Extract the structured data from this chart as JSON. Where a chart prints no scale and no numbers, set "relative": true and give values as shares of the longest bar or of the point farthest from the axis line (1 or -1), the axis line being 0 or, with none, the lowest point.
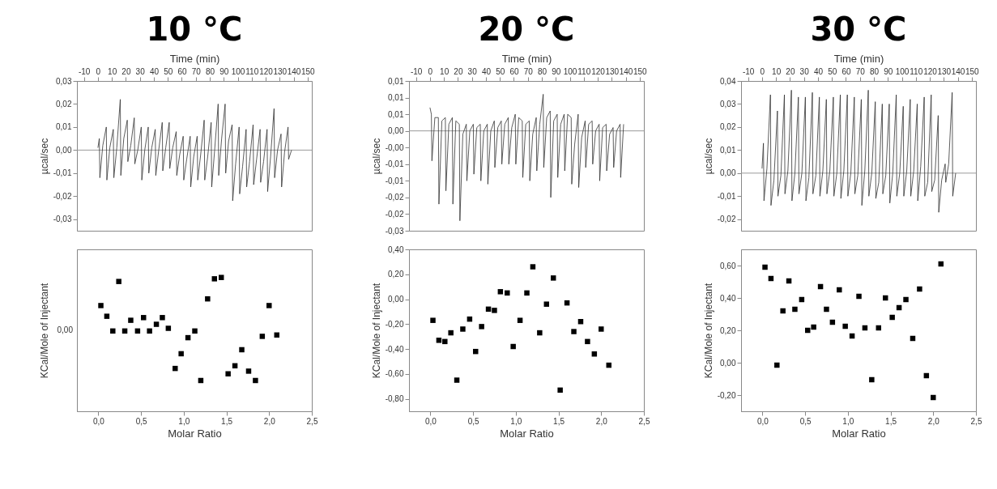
{
  "chart_data": [
    {
      "type": "line",
      "title": "10 °C",
      "xlabel": "Time (min)",
      "ylabel": "µcal/sec",
      "color": "#333333",
      "line_style": "solid",
      "grid": false,
      "xlim": [
        -15,
        153
      ],
      "xticks": [
        -10,
        0,
        10,
        20,
        30,
        40,
        50,
        60,
        70,
        80,
        90,
        100,
        110,
        120,
        130,
        140,
        150
      ],
      "ylim": [
        -0.035,
        0.03
      ],
      "yticks": [
        {
          "value": -0.03,
          "label": "-0,03"
        },
        {
          "value": -0.02,
          "label": "-0,02"
        },
        {
          "value": -0.01,
          "label": "-0,01"
        },
        {
          "value": 0,
          "label": "0,00"
        },
        {
          "value": 0.01,
          "label": "0,01"
        },
        {
          "value": 0.02,
          "label": "0,02"
        },
        {
          "value": 0.03,
          "label": "0,03"
        }
      ],
      "ref_lines": [
        {
          "axis": "y",
          "value": 0,
          "color": "#999999"
        }
      ],
      "x": [
        0,
        1,
        1.4,
        3.5,
        6,
        6.4,
        8.5,
        11,
        11.4,
        13.5,
        16,
        16.4,
        18.5,
        21,
        21.4,
        23.5,
        26,
        26.4,
        28.5,
        31,
        31.4,
        33.5,
        36,
        36.4,
        38.5,
        41,
        41.4,
        43.5,
        46,
        46.4,
        48.5,
        51,
        51.4,
        53.5,
        56,
        56.4,
        58.5,
        61,
        61.4,
        63.5,
        66,
        66.4,
        68.5,
        71,
        71.4,
        73.5,
        76,
        76.4,
        78.5,
        81,
        81.4,
        83.5,
        86,
        86.4,
        88.5,
        91,
        91.4,
        93.5,
        96,
        96.4,
        98.5,
        101,
        101.4,
        103.5,
        106,
        106.4,
        108.5,
        111,
        111.4,
        113.5,
        116,
        116.4,
        118.5,
        121,
        121.4,
        123.5,
        126,
        126.4,
        128.5,
        131,
        131.4,
        133.5,
        136,
        136.4,
        138.5
      ],
      "values": [
        0.001,
        0.005,
        -0.012,
        0.002,
        0.01,
        -0.013,
        0.001,
        0.009,
        -0.012,
        0.001,
        0.022,
        -0.011,
        0.005,
        0.013,
        -0.005,
        0.002,
        0.014,
        -0.006,
        0,
        0.01,
        -0.013,
        0,
        0.01,
        -0.01,
        0.001,
        0.009,
        -0.011,
        0,
        0.012,
        -0.009,
        0.001,
        0.012,
        -0.008,
        0.001,
        0.008,
        -0.011,
        -0.002,
        0.006,
        -0.013,
        -0.004,
        0.006,
        -0.016,
        -0.003,
        0.006,
        -0.013,
        -0.002,
        0.013,
        -0.013,
        -0.003,
        0.012,
        -0.016,
        0,
        0.02,
        -0.011,
        0.005,
        0.02,
        -0.01,
        0.004,
        0.011,
        -0.022,
        -0.006,
        0.01,
        -0.019,
        -0.007,
        0.009,
        -0.016,
        -0.005,
        0.011,
        -0.015,
        -0.004,
        0.009,
        -0.014,
        -0.005,
        0.009,
        -0.018,
        -0.003,
        0.018,
        -0.012,
        0,
        0.007,
        -0.016,
        -0.001,
        0.01,
        -0.004,
        0
      ]
    },
    {
      "type": "scatter",
      "xlabel": "Molar Ratio",
      "ylabel": "KCal/Mole of Injectant",
      "color": "#000000",
      "marker": "square",
      "grid": false,
      "relative": true,
      "xlim": [
        -0.25,
        2.5
      ],
      "xticks": [
        {
          "value": 0,
          "label": "0,0"
        },
        {
          "value": 0.5,
          "label": "0,5"
        },
        {
          "value": 1,
          "label": "1,0"
        },
        {
          "value": 1.5,
          "label": "1,5"
        },
        {
          "value": 2,
          "label": "2,0"
        },
        {
          "value": 2.5,
          "label": "2,5"
        }
      ],
      "annotations": [
        "0,00"
      ],
      "x": [
        0.03,
        0.1,
        0.17,
        0.24,
        0.31,
        0.38,
        0.46,
        0.53,
        0.6,
        0.68,
        0.75,
        0.82,
        0.9,
        0.97,
        1.05,
        1.13,
        1.2,
        1.28,
        1.36,
        1.44,
        1.52,
        1.6,
        1.68,
        1.76,
        1.84,
        1.92,
        2.0,
        2.09
      ],
      "values": [
        0.79,
        0.71,
        0.6,
        0.97,
        0.6,
        0.68,
        0.6,
        0.7,
        0.6,
        0.65,
        0.7,
        0.62,
        0.32,
        0.43,
        0.55,
        0.6,
        0.23,
        0.84,
        0.99,
        1,
        0.28,
        0.34,
        0.46,
        0.3,
        0.23,
        0.56,
        0.79,
        0.57
      ]
    },
    {
      "type": "line",
      "title": "20 °C",
      "xlabel": "Time (min)",
      "ylabel": "µcal/sec",
      "color": "#333333",
      "line_style": "solid",
      "grid": false,
      "xlim": [
        -15,
        153
      ],
      "xticks": [
        -10,
        0,
        10,
        20,
        30,
        40,
        50,
        60,
        70,
        80,
        90,
        100,
        110,
        120,
        130,
        140,
        150
      ],
      "ylim": [
        -0.03,
        0.015
      ],
      "yticks": [
        {
          "value": -0.03,
          "label": "-0,03"
        },
        {
          "value": -0.025,
          "label": "-0,02"
        },
        {
          "value": -0.02,
          "label": "-0,02"
        },
        {
          "value": -0.015,
          "label": "-0,01"
        },
        {
          "value": -0.01,
          "label": "-0,01"
        },
        {
          "value": -0.005,
          "label": "-0,00"
        },
        {
          "value": 0,
          "label": "0,00"
        },
        {
          "value": 0.005,
          "label": "0,01"
        },
        {
          "value": 0.01,
          "label": "0,01"
        },
        {
          "value": 0.015,
          "label": "0,01"
        }
      ],
      "ref_lines": [
        {
          "axis": "y",
          "value": 0,
          "color": "#999999"
        }
      ],
      "x": [
        0,
        1,
        1.4,
        3.5,
        6,
        6.4,
        8.5,
        11,
        11.4,
        13.5,
        16,
        16.4,
        18.5,
        21,
        21.4,
        23.5,
        26,
        26.4,
        28.5,
        31,
        31.4,
        33.5,
        36,
        36.4,
        38.5,
        41,
        41.4,
        43.5,
        46,
        46.4,
        48.5,
        51,
        51.4,
        53.5,
        56,
        56.4,
        58.5,
        61,
        61.4,
        63.5,
        66,
        66.4,
        68.5,
        71,
        71.4,
        73.5,
        76,
        76.4,
        78.5,
        81,
        81.4,
        83.5,
        86,
        86.4,
        88.5,
        91,
        91.4,
        93.5,
        96,
        96.4,
        98.5,
        101,
        101.4,
        103.5,
        106,
        106.4,
        108.5,
        111,
        111.4,
        113.5,
        116,
        116.4,
        118.5,
        121,
        121.4,
        123.5,
        126,
        126.4,
        128.5,
        131,
        131.4,
        133.5,
        136,
        136.4,
        138.5
      ],
      "values": [
        0.007,
        0.005,
        -0.009,
        0.004,
        0.004,
        -0.022,
        0.003,
        0.004,
        -0.018,
        0.002,
        0.004,
        -0.022,
        0.003,
        0.002,
        -0.027,
        -0.001,
        0.002,
        -0.015,
        0,
        0.002,
        -0.013,
        0.001,
        0.002,
        -0.015,
        0,
        0.002,
        -0.016,
        0,
        0.003,
        -0.011,
        0.001,
        0.003,
        -0.01,
        0.002,
        0.004,
        -0.01,
        0.001,
        0.005,
        -0.01,
        0.004,
        0.003,
        -0.014,
        0.002,
        0.003,
        -0.015,
        -0.001,
        0.004,
        -0.012,
        0.002,
        0.011,
        -0.011,
        0.004,
        0.006,
        -0.02,
        0.003,
        0.005,
        -0.014,
        0.002,
        0.005,
        -0.012,
        0.005,
        0.004,
        -0.016,
        -0.004,
        0.005,
        -0.017,
        -0.002,
        0.003,
        -0.011,
        0.002,
        0.003,
        -0.01,
        0,
        0.002,
        -0.015,
        0.001,
        0.002,
        -0.012,
        -0.001,
        0.001,
        -0.011,
        0,
        0.002,
        -0.014,
        0.002
      ]
    },
    {
      "type": "scatter",
      "xlabel": "Molar Ratio",
      "ylabel": "KCal/Mole of Injectant",
      "color": "#000000",
      "marker": "square",
      "grid": false,
      "xlim": [
        -0.25,
        2.5
      ],
      "xticks": [
        {
          "value": 0,
          "label": "0,0"
        },
        {
          "value": 0.5,
          "label": "0,5"
        },
        {
          "value": 1,
          "label": "1,0"
        },
        {
          "value": 1.5,
          "label": "1,5"
        },
        {
          "value": 2,
          "label": "2,0"
        },
        {
          "value": 2.5,
          "label": "2,5"
        }
      ],
      "ylim": [
        -0.9,
        0.4
      ],
      "yticks": [
        {
          "value": -0.8,
          "label": "-0,80"
        },
        {
          "value": -0.6,
          "label": "-0,60"
        },
        {
          "value": -0.4,
          "label": "-0,40"
        },
        {
          "value": -0.2,
          "label": "-0,20"
        },
        {
          "value": 0,
          "label": "0,00"
        },
        {
          "value": 0.2,
          "label": "0,20"
        },
        {
          "value": 0.4,
          "label": "0,40"
        }
      ],
      "x": [
        0.03,
        0.1,
        0.17,
        0.24,
        0.31,
        0.38,
        0.46,
        0.53,
        0.6,
        0.68,
        0.75,
        0.82,
        0.9,
        0.97,
        1.05,
        1.13,
        1.2,
        1.28,
        1.36,
        1.44,
        1.52,
        1.6,
        1.68,
        1.76,
        1.84,
        1.92,
        2.0,
        2.09
      ],
      "values": [
        -0.17,
        -0.33,
        -0.34,
        -0.27,
        -0.65,
        -0.24,
        -0.16,
        -0.42,
        -0.22,
        -0.08,
        -0.09,
        0.06,
        0.05,
        -0.38,
        -0.17,
        0.05,
        0.26,
        -0.27,
        -0.04,
        0.17,
        -0.73,
        -0.03,
        -0.26,
        -0.18,
        -0.34,
        -0.44,
        -0.24,
        -0.53
      ]
    },
    {
      "type": "line",
      "title": "30 °C",
      "xlabel": "Time (min)",
      "ylabel": "µcal/sec",
      "color": "#333333",
      "line_style": "solid",
      "grid": false,
      "xlim": [
        -15,
        153
      ],
      "xticks": [
        -10,
        0,
        10,
        20,
        30,
        40,
        50,
        60,
        70,
        80,
        90,
        100,
        110,
        120,
        130,
        140,
        150
      ],
      "ylim": [
        -0.025,
        0.04
      ],
      "yticks": [
        {
          "value": -0.02,
          "label": "-0,02"
        },
        {
          "value": -0.01,
          "label": "-0,01"
        },
        {
          "value": 0,
          "label": "0,00"
        },
        {
          "value": 0.01,
          "label": "0,01"
        },
        {
          "value": 0.02,
          "label": "0,02"
        },
        {
          "value": 0.03,
          "label": "0,03"
        },
        {
          "value": 0.04,
          "label": "0,04"
        }
      ],
      "ref_lines": [
        {
          "axis": "y",
          "value": 0,
          "color": "#999999"
        }
      ],
      "x": [
        0,
        1,
        1.4,
        3.5,
        6,
        6.4,
        8.5,
        11,
        11.4,
        13.5,
        16,
        16.4,
        18.5,
        21,
        21.4,
        23.5,
        26,
        26.4,
        28.5,
        31,
        31.4,
        33.5,
        36,
        36.4,
        38.5,
        41,
        41.4,
        43.5,
        46,
        46.4,
        48.5,
        51,
        51.4,
        53.5,
        56,
        56.4,
        58.5,
        61,
        61.4,
        63.5,
        66,
        66.4,
        68.5,
        71,
        71.4,
        73.5,
        76,
        76.4,
        78.5,
        81,
        81.4,
        83.5,
        86,
        86.4,
        88.5,
        91,
        91.4,
        93.5,
        96,
        96.4,
        98.5,
        101,
        101.4,
        103.5,
        106,
        106.4,
        108.5,
        111,
        111.4,
        113.5,
        116,
        116.4,
        118.5,
        121,
        121.4,
        123.5,
        126,
        126.4,
        128.5,
        131,
        131.4,
        133.5,
        136,
        136.4,
        138.5
      ],
      "values": [
        0.002,
        0.013,
        -0.012,
        0.002,
        0.034,
        -0.014,
        -0.003,
        0.027,
        -0.01,
        -0.001,
        0.034,
        -0.009,
        0.001,
        0.036,
        -0.012,
        0,
        0.033,
        -0.009,
        0,
        0.033,
        -0.012,
        -0.002,
        0.035,
        -0.009,
        -0.001,
        0.033,
        -0.01,
        0.001,
        0.032,
        -0.009,
        0.001,
        0.033,
        -0.01,
        0,
        0.034,
        -0.011,
        0.001,
        0.034,
        -0.01,
        0,
        0.033,
        -0.009,
        -0.001,
        0.032,
        -0.014,
        0.001,
        0.036,
        -0.01,
        0,
        0.031,
        -0.011,
        -0.004,
        0.03,
        -0.009,
        -0.001,
        0.03,
        -0.013,
        0,
        0.034,
        -0.01,
        0,
        0.029,
        -0.01,
        0.001,
        0.032,
        -0.01,
        0.001,
        0.03,
        -0.012,
        0.003,
        0.033,
        -0.01,
        -0.004,
        0.034,
        -0.008,
        -0.003,
        0.025,
        -0.017,
        -0.003,
        0.004,
        -0.004,
        0.004,
        0.035,
        -0.01,
        0
      ]
    },
    {
      "type": "scatter",
      "xlabel": "Molar Ratio",
      "ylabel": "KCal/Mole of Injectant",
      "color": "#000000",
      "marker": "square",
      "grid": false,
      "xlim": [
        -0.25,
        2.5
      ],
      "xticks": [
        {
          "value": 0,
          "label": "0,0"
        },
        {
          "value": 0.5,
          "label": "0,5"
        },
        {
          "value": 1,
          "label": "1,0"
        },
        {
          "value": 1.5,
          "label": "1,5"
        },
        {
          "value": 2,
          "label": "2,0"
        },
        {
          "value": 2.5,
          "label": "2,5"
        }
      ],
      "ylim": [
        -0.3,
        0.7
      ],
      "yticks": [
        {
          "value": -0.2,
          "label": "-0,20"
        },
        {
          "value": 0,
          "label": "0,00"
        },
        {
          "value": 0.2,
          "label": "0,20"
        },
        {
          "value": 0.4,
          "label": "0,40"
        },
        {
          "value": 0.6,
          "label": "0,60"
        }
      ],
      "x": [
        0.03,
        0.1,
        0.17,
        0.24,
        0.31,
        0.38,
        0.46,
        0.53,
        0.6,
        0.68,
        0.75,
        0.82,
        0.9,
        0.97,
        1.05,
        1.13,
        1.2,
        1.28,
        1.36,
        1.44,
        1.52,
        1.6,
        1.68,
        1.76,
        1.84,
        1.92,
        2.0,
        2.09
      ],
      "values": [
        0.59,
        0.52,
        -0.015,
        0.32,
        0.505,
        0.33,
        0.39,
        0.2,
        0.22,
        0.47,
        0.33,
        0.25,
        0.45,
        0.225,
        0.165,
        0.41,
        0.215,
        -0.105,
        0.215,
        0.4,
        0.28,
        0.34,
        0.39,
        0.15,
        0.455,
        -0.08,
        -0.215,
        0.61
      ]
    }
  ]
}
